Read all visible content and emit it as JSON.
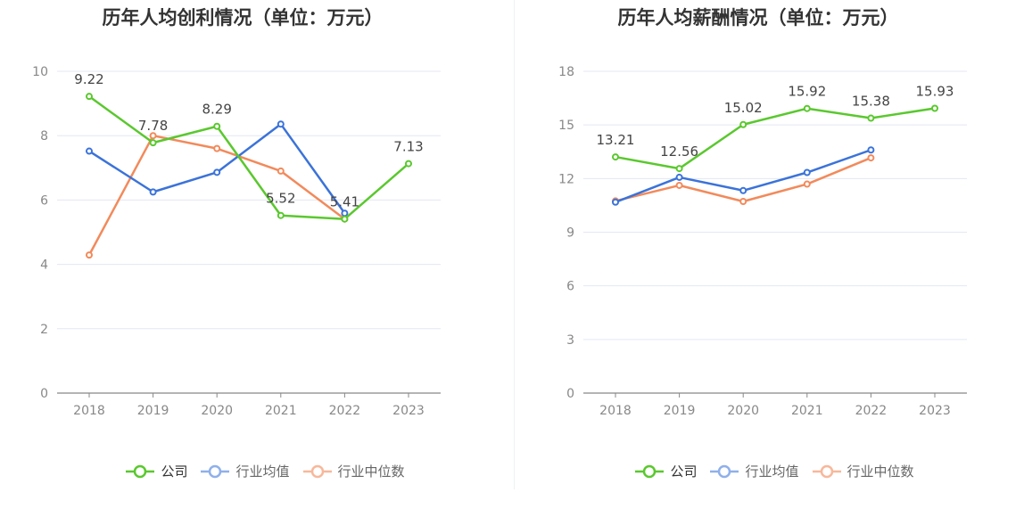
{
  "legend": [
    {
      "label": "公司",
      "color": "#5ac82e"
    },
    {
      "label": "行业均值",
      "color": "#3b73d9"
    },
    {
      "label": "行业中位数",
      "color": "#f28a5b"
    }
  ],
  "chart_data": [
    {
      "type": "line",
      "title": "历年人均创利情况（单位：万元）",
      "categories": [
        "2018",
        "2019",
        "2020",
        "2021",
        "2022",
        "2023"
      ],
      "ylim": [
        0,
        10
      ],
      "yticks": [
        0,
        2,
        4,
        6,
        8,
        10
      ],
      "series": [
        {
          "name": "公司",
          "color": "#5ac82e",
          "values": [
            9.22,
            7.78,
            8.29,
            5.52,
            5.41,
            7.13
          ],
          "labels": [
            "9.22",
            "7.78",
            "8.29",
            "5.52",
            "5.41",
            "7.13"
          ]
        },
        {
          "name": "行业均值",
          "color": "#3b73d9",
          "values": [
            7.52,
            6.25,
            6.86,
            8.36,
            5.59,
            null
          ]
        },
        {
          "name": "行业中位数",
          "color": "#f28a5b",
          "values": [
            4.29,
            8.0,
            7.6,
            6.9,
            5.41,
            null
          ]
        }
      ]
    },
    {
      "type": "line",
      "title": "历年人均薪酬情况（单位：万元）",
      "categories": [
        "2018",
        "2019",
        "2020",
        "2021",
        "2022",
        "2023"
      ],
      "ylim": [
        0,
        18
      ],
      "yticks": [
        0,
        3,
        6,
        9,
        12,
        15,
        18
      ],
      "series": [
        {
          "name": "公司",
          "color": "#5ac82e",
          "values": [
            13.21,
            12.56,
            15.02,
            15.92,
            15.38,
            15.93
          ],
          "labels": [
            "13.21",
            "12.56",
            "15.02",
            "15.92",
            "15.38",
            "15.93"
          ]
        },
        {
          "name": "行业均值",
          "color": "#3b73d9",
          "values": [
            10.68,
            12.07,
            11.33,
            12.34,
            13.6,
            null
          ]
        },
        {
          "name": "行业中位数",
          "color": "#f28a5b",
          "values": [
            10.75,
            11.62,
            10.72,
            11.69,
            13.16,
            null
          ]
        }
      ]
    }
  ]
}
